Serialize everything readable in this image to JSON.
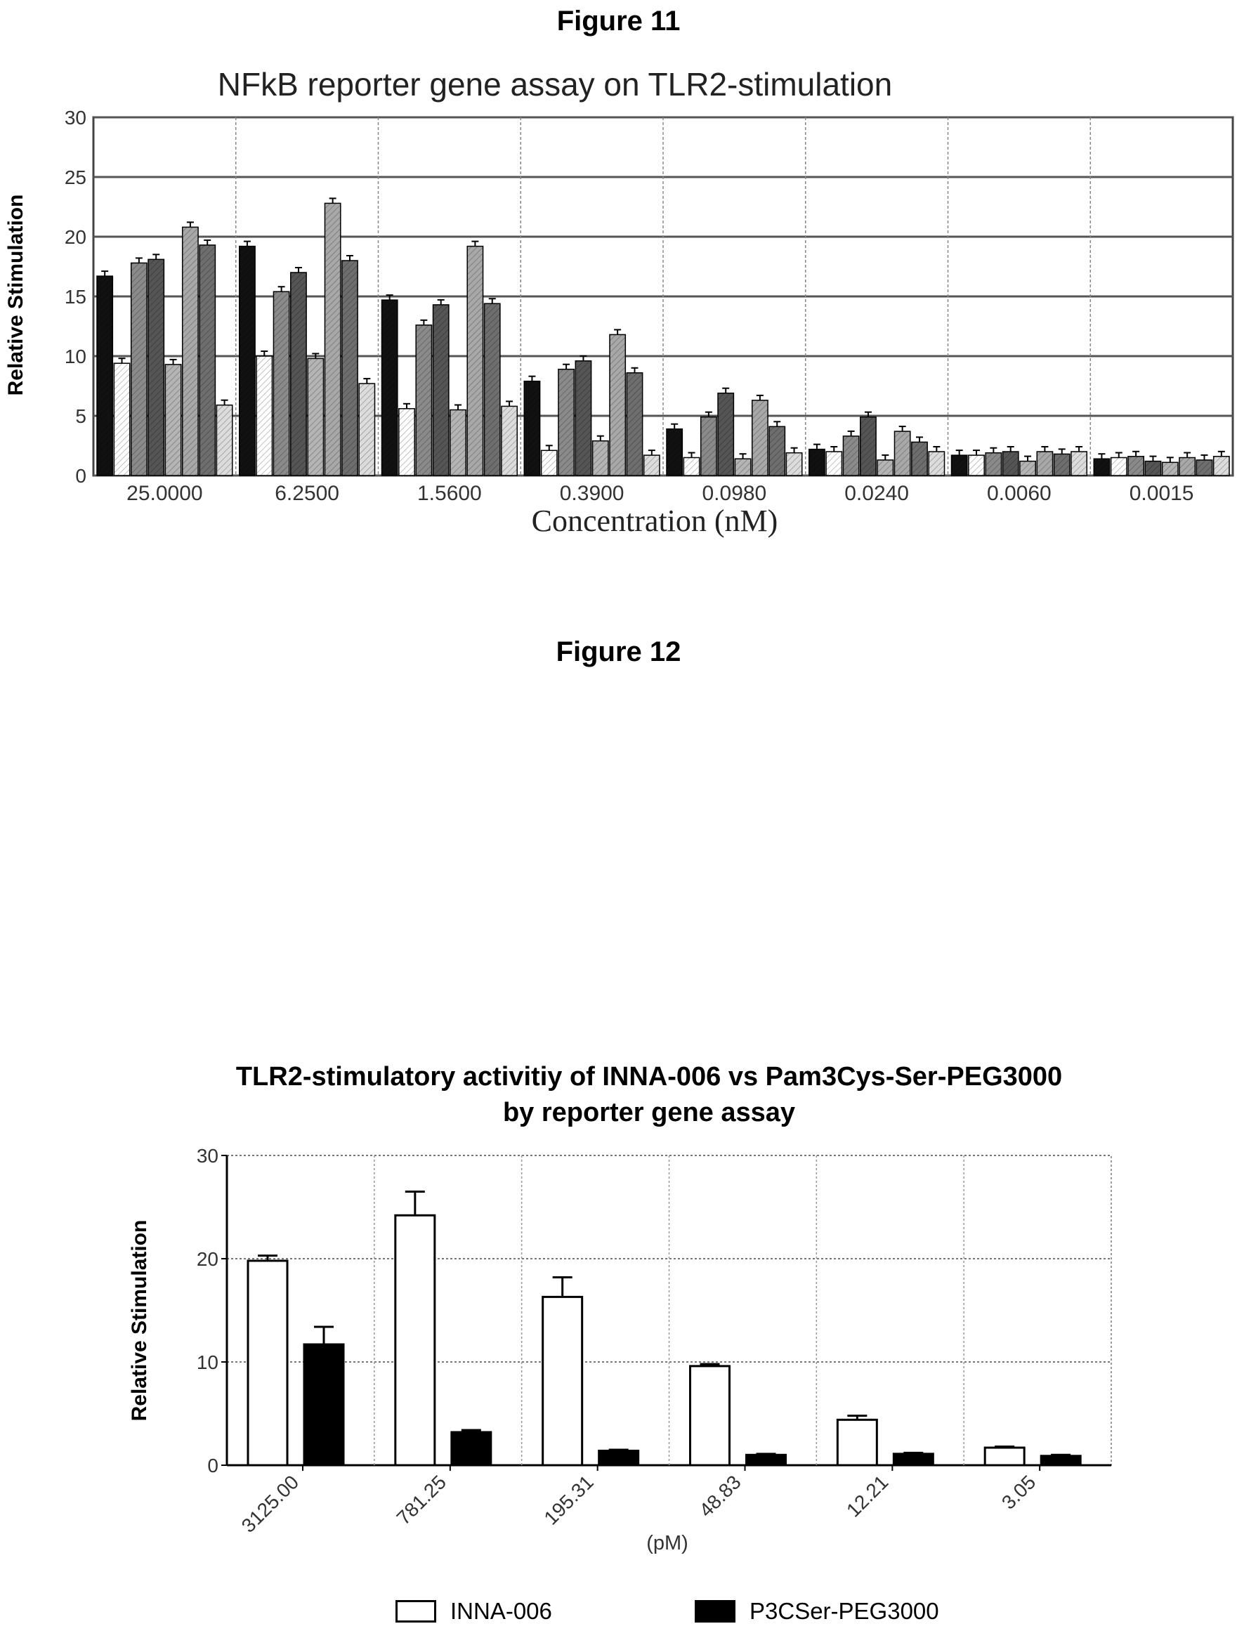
{
  "figures": [
    {
      "label": "Figure 11"
    },
    {
      "label": "Figure 12"
    }
  ],
  "chart_data": [
    {
      "type": "bar",
      "title": "NFkB  reporter gene assay on TLR2-stimulation",
      "xlabel": "Concentration (nM)",
      "ylabel": "Relative Stimulation",
      "ylim": [
        0,
        30
      ],
      "yticks": [
        "0",
        "5",
        "10",
        "15",
        "20",
        "25",
        "30"
      ],
      "grid": true,
      "categories": [
        "25.0000",
        "6.2500",
        "1.5600",
        "0.3900",
        "0.0980",
        "0.0240",
        "0.0060",
        "0.0015"
      ],
      "series": [
        {
          "values": [
            16.7,
            19.2,
            14.7,
            7.9,
            3.9,
            2.2,
            1.7,
            1.4
          ],
          "color": "#111111"
        },
        {
          "values": [
            9.4,
            10.0,
            5.6,
            2.1,
            1.5,
            2.0,
            1.7,
            1.5
          ],
          "color": "#ffffff"
        },
        {
          "values": [
            17.8,
            15.4,
            12.6,
            8.9,
            4.9,
            3.3,
            1.9,
            1.6
          ],
          "color": "#8a8a8a"
        },
        {
          "values": [
            18.1,
            17.0,
            14.3,
            9.6,
            6.9,
            4.9,
            2.0,
            1.2
          ],
          "color": "#555555"
        },
        {
          "values": [
            9.3,
            9.8,
            5.5,
            2.9,
            1.4,
            1.3,
            1.2,
            1.1
          ],
          "color": "#b4b4b4"
        },
        {
          "values": [
            20.8,
            22.8,
            19.2,
            11.8,
            6.3,
            3.7,
            2.0,
            1.5
          ],
          "color": "#a8a8a8"
        },
        {
          "values": [
            19.3,
            18.0,
            14.4,
            8.6,
            4.1,
            2.8,
            1.8,
            1.3
          ],
          "color": "#6e6e6e"
        },
        {
          "values": [
            5.9,
            7.7,
            5.8,
            1.7,
            1.9,
            2.0,
            2.0,
            1.6
          ],
          "color": "#dcdcdc"
        }
      ]
    },
    {
      "type": "bar",
      "title": "TLR2-stimulatory activitiy of INNA-006 vs Pam3Cys-Ser-PEG3000",
      "subtitle": "by reporter gene assay",
      "xlabel": "(pM)",
      "ylabel": "Relative Stimulation",
      "ylim": [
        0,
        30
      ],
      "yticks": [
        "0",
        "10",
        "20",
        "30"
      ],
      "grid": true,
      "categories": [
        "3125.00",
        "781.25",
        "195.31",
        "48.83",
        "12.21",
        "3.05"
      ],
      "series": [
        {
          "name": "INNA-006",
          "values": [
            19.8,
            24.2,
            16.3,
            9.6,
            4.4,
            1.7
          ],
          "errors": [
            0.5,
            2.3,
            1.9,
            0.2,
            0.4,
            0.1
          ],
          "color": "#ffffff"
        },
        {
          "name": "P3CSer-PEG3000",
          "values": [
            11.7,
            3.2,
            1.4,
            1.0,
            1.1,
            0.9
          ],
          "errors": [
            1.7,
            0.2,
            0.1,
            0.1,
            0.1,
            0.1
          ],
          "color": "#000000"
        }
      ]
    }
  ]
}
